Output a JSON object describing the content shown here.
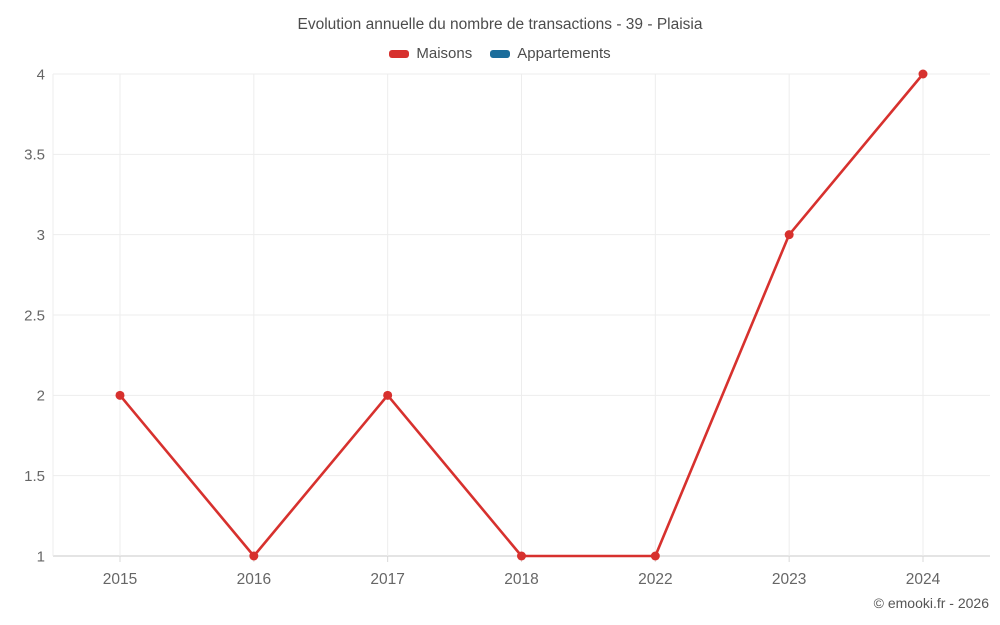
{
  "page": {
    "title": "Evolution annuelle du nombre de transactions - 39 - Plaisia",
    "copyright": "© emooki.fr - 2026"
  },
  "legend": {
    "items": [
      {
        "label": "Maisons",
        "color": "#d7312e"
      },
      {
        "label": "Appartements",
        "color": "#1b6d9b"
      }
    ]
  },
  "chart_data": {
    "type": "line",
    "title": "Evolution annuelle du nombre de transactions - 39 - Plaisia",
    "categories": [
      "2015",
      "2016",
      "2017",
      "2018",
      "2022",
      "2023",
      "2024"
    ],
    "series": [
      {
        "name": "Maisons",
        "color": "#d7312e",
        "values": [
          2,
          1,
          2,
          1,
          1,
          3,
          4
        ]
      },
      {
        "name": "Appartements",
        "color": "#1b6d9b",
        "values": []
      }
    ],
    "xlabel": "",
    "ylabel": "",
    "ylim": [
      1,
      4
    ],
    "yticks": [
      1,
      1.5,
      2,
      2.5,
      3,
      3.5,
      4
    ],
    "grid": true,
    "legend_position": "top",
    "marker": "circle"
  },
  "colors": {
    "grid": "#ededed",
    "axis": "#c9c9c9",
    "tick": "#d9d9d9",
    "tick_label": "#666666",
    "background": "#ffffff"
  }
}
